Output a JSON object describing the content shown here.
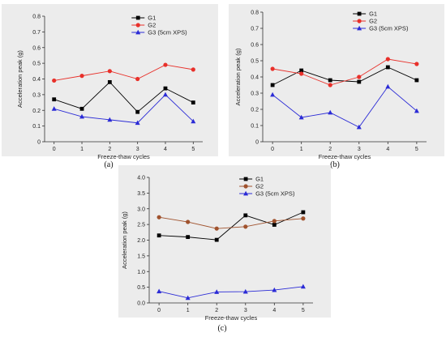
{
  "chart_data": [
    {
      "type": "line",
      "panel_label": "(a)",
      "xlabel": "Freeze-thaw cycles",
      "ylabel": "Acceleration peak (g)",
      "x": [
        0,
        1,
        2,
        3,
        4,
        5
      ],
      "xticks": [
        "0",
        "1",
        "2",
        "3",
        "4",
        "5"
      ],
      "ylim": [
        0,
        0.8
      ],
      "yticks": [
        "0",
        "0.1",
        "0.2",
        "0.3",
        "0.4",
        "0.5",
        "0.6",
        "0.7",
        "0.8"
      ],
      "grid": false,
      "legend": "top-right",
      "series": [
        {
          "name": "G1",
          "marker": "square",
          "color": "#000000",
          "values": [
            0.27,
            0.21,
            0.38,
            0.19,
            0.34,
            0.25
          ]
        },
        {
          "name": "G2",
          "marker": "circle",
          "color": "#e8302a",
          "values": [
            0.39,
            0.42,
            0.45,
            0.4,
            0.49,
            0.46
          ]
        },
        {
          "name": "G3 (5cm XPS)",
          "marker": "triangle",
          "color": "#2b2bd6",
          "values": [
            0.21,
            0.16,
            0.14,
            0.12,
            0.3,
            0.13
          ]
        }
      ]
    },
    {
      "type": "line",
      "panel_label": "(b)",
      "xlabel": "Freeze-thaw cycles",
      "ylabel": "Acceleration peak (g)",
      "x": [
        0,
        1,
        2,
        3,
        4,
        5
      ],
      "xticks": [
        "0",
        "1",
        "2",
        "3",
        "4",
        "5"
      ],
      "ylim": [
        0,
        0.8
      ],
      "yticks": [
        "0",
        "0.1",
        "0.2",
        "0.3",
        "0.4",
        "0.5",
        "0.6",
        "0.7",
        "0.8"
      ],
      "grid": false,
      "legend": "top-right",
      "series": [
        {
          "name": "G1",
          "marker": "square",
          "color": "#000000",
          "values": [
            0.35,
            0.44,
            0.38,
            0.37,
            0.46,
            0.38
          ]
        },
        {
          "name": "G2",
          "marker": "circle",
          "color": "#e8302a",
          "values": [
            0.45,
            0.42,
            0.35,
            0.4,
            0.51,
            0.48
          ]
        },
        {
          "name": "G3 (5cm XPS)",
          "marker": "triangle",
          "color": "#2b2bd6",
          "values": [
            0.29,
            0.15,
            0.18,
            0.09,
            0.34,
            0.19
          ]
        }
      ]
    },
    {
      "type": "line",
      "panel_label": "(c)",
      "xlabel": "Freeze-thaw cycles",
      "ylabel": "Acceleration peak (g)",
      "x": [
        0,
        1,
        2,
        3,
        4,
        5
      ],
      "xticks": [
        "0",
        "1",
        "2",
        "3",
        "4",
        "5"
      ],
      "ylim": [
        0,
        4.0
      ],
      "yticks": [
        "0.0",
        "0.5",
        "1.0",
        "1.5",
        "2.0",
        "2.5",
        "3.0",
        "3.5",
        "4.0"
      ],
      "grid": false,
      "legend": "top-right",
      "series": [
        {
          "name": "G1",
          "marker": "square",
          "color": "#000000",
          "values": [
            2.15,
            2.1,
            2.01,
            2.79,
            2.49,
            2.89
          ]
        },
        {
          "name": "G2",
          "marker": "circle",
          "color": "#a0522d",
          "values": [
            2.73,
            2.58,
            2.37,
            2.43,
            2.61,
            2.69
          ]
        },
        {
          "name": "G3 (5cm XPS)",
          "marker": "triangle",
          "color": "#2b2bd6",
          "values": [
            0.37,
            0.16,
            0.35,
            0.36,
            0.41,
            0.52
          ]
        }
      ]
    }
  ]
}
